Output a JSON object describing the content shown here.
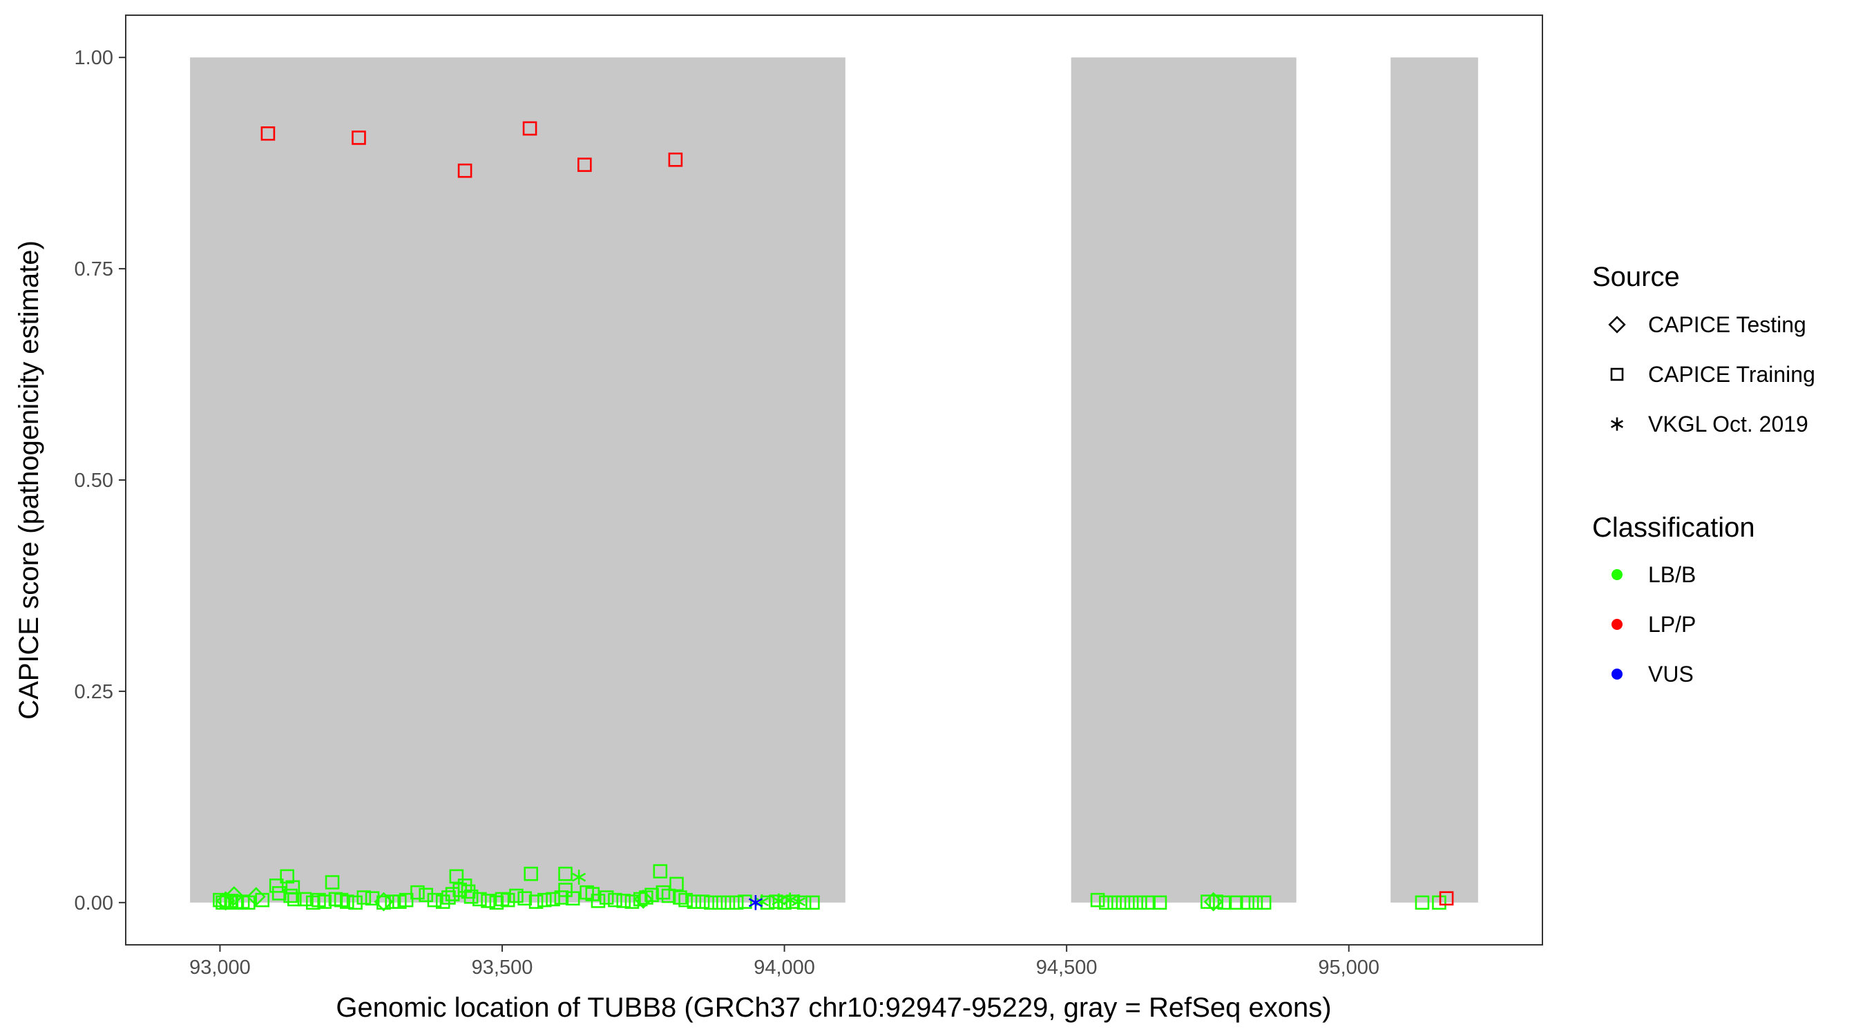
{
  "chart_data": {
    "type": "scatter",
    "xlabel": "Genomic location of TUBB8 (GRCh37 chr10:92947-95229, gray = RefSeq exons)",
    "ylabel": "CAPICE score (pathogenicity estimate)",
    "xlim": [
      92833,
      95343
    ],
    "ylim": [
      -0.05,
      1.05
    ],
    "x_ticks": [
      93000,
      93500,
      94000,
      94500,
      95000
    ],
    "x_tick_labels": [
      "93,000",
      "93,500",
      "94,000",
      "94,500",
      "95,000"
    ],
    "y_ticks": [
      0,
      0.25,
      0.5,
      0.75,
      1.0
    ],
    "y_tick_labels": [
      "0.00",
      "0.25",
      "0.50",
      "0.75",
      "1.00"
    ],
    "grid": false,
    "exons": [
      [
        92947,
        94108
      ],
      [
        94508,
        94907
      ],
      [
        95074,
        95229
      ]
    ],
    "exon_color": "#c8c8c8",
    "legend_placement": "right",
    "legend": {
      "source_title": "Source",
      "source_items": [
        {
          "label": "CAPICE Testing",
          "shape": "diamond"
        },
        {
          "label": "CAPICE Training",
          "shape": "square"
        },
        {
          "label": "VKGL Oct. 2019",
          "shape": "asterisk"
        }
      ],
      "classification_title": "Classification",
      "classification_items": [
        {
          "label": "LB/B",
          "color": "#22ff00"
        },
        {
          "label": "LP/P",
          "color": "#ff0000"
        },
        {
          "label": "VUS",
          "color": "#0000ff"
        }
      ]
    },
    "series": [
      {
        "source": "CAPICE Training",
        "classification": "LP/P",
        "points": [
          [
            93085,
            0.91
          ],
          [
            93246,
            0.905
          ],
          [
            93434,
            0.866
          ],
          [
            93549,
            0.916
          ],
          [
            93646,
            0.873
          ],
          [
            93807,
            0.879
          ],
          [
            95173,
            0.005
          ]
        ]
      },
      {
        "source": "VKGL Oct. 2019",
        "classification": "VUS",
        "points": [
          [
            93949,
            0.0
          ]
        ]
      },
      {
        "source": "VKGL Oct. 2019",
        "classification": "LB/B",
        "points": [
          [
            93636,
            0.03
          ],
          [
            93960,
            0.001
          ],
          [
            93990,
            0.002
          ],
          [
            94010,
            0.003
          ],
          [
            94025,
            0.001
          ]
        ]
      },
      {
        "source": "CAPICE Testing",
        "classification": "LB/B",
        "points": [
          [
            93025,
            0.008
          ],
          [
            93064,
            0.007
          ],
          [
            93010,
            0.002
          ],
          [
            93290,
            0.001
          ],
          [
            93750,
            0.004
          ],
          [
            94760,
            0.001
          ]
        ]
      },
      {
        "source": "CAPICE Training",
        "classification": "LB/B",
        "points": [
          [
            93000,
            0.003
          ],
          [
            93005,
            0.0
          ],
          [
            93012,
            0.001
          ],
          [
            93020,
            0.002
          ],
          [
            93030,
            0.0
          ],
          [
            93040,
            0.001
          ],
          [
            93050,
            0.0
          ],
          [
            93075,
            0.003
          ],
          [
            93100,
            0.02
          ],
          [
            93105,
            0.011
          ],
          [
            93119,
            0.031
          ],
          [
            93125,
            0.008
          ],
          [
            93129,
            0.018
          ],
          [
            93132,
            0.004
          ],
          [
            93150,
            0.004
          ],
          [
            93165,
            0.0
          ],
          [
            93175,
            0.003
          ],
          [
            93185,
            0.001
          ],
          [
            93199,
            0.024
          ],
          [
            93205,
            0.004
          ],
          [
            93215,
            0.003
          ],
          [
            93225,
            0.001
          ],
          [
            93240,
            0.0
          ],
          [
            93255,
            0.006
          ],
          [
            93270,
            0.005
          ],
          [
            93290,
            0.0
          ],
          [
            93305,
            0.001
          ],
          [
            93318,
            0.001
          ],
          [
            93330,
            0.003
          ],
          [
            93350,
            0.012
          ],
          [
            93365,
            0.009
          ],
          [
            93380,
            0.003
          ],
          [
            93395,
            0.001
          ],
          [
            93405,
            0.006
          ],
          [
            93412,
            0.01
          ],
          [
            93419,
            0.031
          ],
          [
            93425,
            0.015
          ],
          [
            93434,
            0.02
          ],
          [
            93440,
            0.013
          ],
          [
            93445,
            0.007
          ],
          [
            93460,
            0.004
          ],
          [
            93475,
            0.002
          ],
          [
            93490,
            0.0
          ],
          [
            93500,
            0.004
          ],
          [
            93510,
            0.003
          ],
          [
            93525,
            0.008
          ],
          [
            93540,
            0.005
          ],
          [
            93551,
            0.034
          ],
          [
            93560,
            0.001
          ],
          [
            93575,
            0.003
          ],
          [
            93590,
            0.004
          ],
          [
            93605,
            0.006
          ],
          [
            93612,
            0.034
          ],
          [
            93612,
            0.015
          ],
          [
            93625,
            0.005
          ],
          [
            93650,
            0.012
          ],
          [
            93660,
            0.01
          ],
          [
            93670,
            0.002
          ],
          [
            93685,
            0.006
          ],
          [
            93700,
            0.003
          ],
          [
            93715,
            0.002
          ],
          [
            93730,
            0.001
          ],
          [
            93745,
            0.004
          ],
          [
            93755,
            0.006
          ],
          [
            93765,
            0.009
          ],
          [
            93780,
            0.037
          ],
          [
            93785,
            0.012
          ],
          [
            93795,
            0.008
          ],
          [
            93809,
            0.022
          ],
          [
            93815,
            0.006
          ],
          [
            93825,
            0.003
          ],
          [
            93840,
            0.001
          ],
          [
            93855,
            0.001
          ],
          [
            93870,
            0.0
          ],
          [
            93885,
            0.0
          ],
          [
            93900,
            0.0
          ],
          [
            93915,
            0.0
          ],
          [
            93930,
            0.001
          ],
          [
            93970,
            0.0
          ],
          [
            93985,
            0.001
          ],
          [
            94000,
            0.0
          ],
          [
            94015,
            0.001
          ],
          [
            94035,
            0.0
          ],
          [
            94050,
            0.0
          ],
          [
            94555,
            0.003
          ],
          [
            94570,
            0.0
          ],
          [
            94585,
            0.0
          ],
          [
            94600,
            0.0
          ],
          [
            94615,
            0.0
          ],
          [
            94630,
            0.0
          ],
          [
            94645,
            0.0
          ],
          [
            94665,
            0.0
          ],
          [
            94750,
            0.001
          ],
          [
            94765,
            0.001
          ],
          [
            94780,
            0.0
          ],
          [
            94800,
            0.0
          ],
          [
            94820,
            0.0
          ],
          [
            94835,
            0.0
          ],
          [
            94850,
            0.0
          ],
          [
            95130,
            0.0
          ],
          [
            95160,
            0.0
          ]
        ]
      }
    ]
  }
}
